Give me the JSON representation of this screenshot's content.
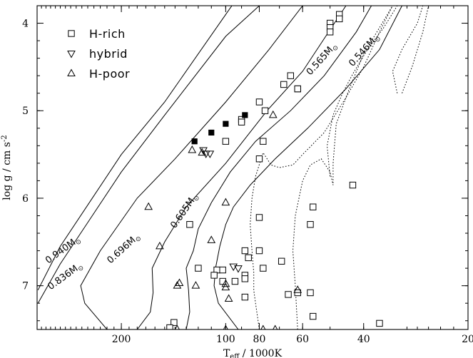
{
  "chart_data": {
    "type": "scatter",
    "xlabel": "T",
    "xlabel_sub": "eff",
    "xlabel_unit": "/ 1000K",
    "ylabel": "log g / cm s",
    "ylabel_sup": "-2",
    "x_scale": "log",
    "x_reversed": true,
    "y_reversed": true,
    "xlim": [
      350,
      20
    ],
    "ylim": [
      3.8,
      7.5
    ],
    "x_ticks": [
      200,
      100,
      80,
      60,
      40,
      20
    ],
    "y_ticks": [
      4,
      5,
      6,
      7
    ],
    "legend": {
      "placement": "top-left",
      "entries": [
        {
          "marker": "square",
          "label": "H-rich"
        },
        {
          "marker": "triangle-down",
          "label": "hybrid"
        },
        {
          "marker": "triangle-up",
          "label": "H-poor"
        }
      ]
    },
    "series": [
      {
        "name": "H-rich",
        "marker": "square",
        "points": [
          [
            50,
            4.0
          ],
          [
            50,
            4.05
          ],
          [
            50,
            4.1
          ],
          [
            47,
            3.9
          ],
          [
            47,
            3.95
          ],
          [
            65,
            4.6
          ],
          [
            68,
            4.7
          ],
          [
            62,
            4.75
          ],
          [
            62,
            4.75
          ],
          [
            80,
            4.9
          ],
          [
            77,
            5.0
          ],
          [
            90,
            5.1
          ],
          [
            90,
            5.13
          ],
          [
            100,
            5.35
          ],
          [
            78,
            5.35
          ],
          [
            80,
            5.55
          ],
          [
            43,
            5.85
          ],
          [
            56,
            6.1
          ],
          [
            80,
            6.22
          ],
          [
            57,
            6.3
          ],
          [
            127,
            6.3
          ],
          [
            88,
            6.6
          ],
          [
            80,
            6.6
          ],
          [
            86,
            6.68
          ],
          [
            69,
            6.72
          ],
          [
            120,
            6.8
          ],
          [
            106,
            6.82
          ],
          [
            102,
            6.82
          ],
          [
            108,
            6.88
          ],
          [
            78,
            6.8
          ],
          [
            88,
            6.88
          ],
          [
            88,
            6.92
          ],
          [
            102,
            6.95
          ],
          [
            94,
            6.95
          ],
          [
            62,
            7.08
          ],
          [
            66,
            7.1
          ],
          [
            57,
            7.08
          ],
          [
            88,
            7.13
          ],
          [
            56,
            7.35
          ],
          [
            36,
            7.43
          ],
          [
            141,
            7.42
          ],
          [
            145,
            7.48
          ]
        ]
      },
      {
        "name": "hybrid",
        "marker": "triangle-down",
        "points": [
          [
            116,
            5.45
          ],
          [
            114,
            5.49
          ],
          [
            111,
            5.49
          ],
          [
            92,
            6.8
          ],
          [
            95,
            6.78
          ]
        ]
      },
      {
        "name": "H-poor",
        "marker": "triangle-up",
        "points": [
          [
            125,
            5.45
          ],
          [
            117,
            5.48
          ],
          [
            73,
            5.05
          ],
          [
            167,
            6.1
          ],
          [
            155,
            6.55
          ],
          [
            110,
            6.48
          ],
          [
            100,
            6.05
          ],
          [
            138,
            7.0
          ],
          [
            136,
            6.97
          ],
          [
            122,
            7.0
          ],
          [
            100,
            6.98
          ],
          [
            100,
            7.02
          ],
          [
            98,
            7.15
          ],
          [
            62,
            7.05
          ],
          [
            138,
            7.5
          ],
          [
            100,
            7.5
          ],
          [
            78,
            7.5
          ],
          [
            72,
            7.5
          ]
        ]
      },
      {
        "name": "H-rich (filled)",
        "marker": "square-filled",
        "points": [
          [
            123,
            5.35
          ],
          [
            110,
            5.25
          ],
          [
            100,
            5.15
          ],
          [
            88,
            5.05
          ]
        ]
      }
    ],
    "tracks": [
      {
        "label": "0.940M",
        "label_at": [
          325,
          6.75
        ],
        "points": [
          [
            348,
            7.05
          ],
          [
            300,
            6.55
          ],
          [
            200,
            5.5
          ],
          [
            150,
            4.9
          ],
          [
            100,
            3.9
          ],
          [
            96,
            3.8
          ]
        ]
      },
      {
        "label": "0.836M",
        "label_at": [
          320,
          7.05
        ],
        "points": [
          [
            348,
            7.2
          ],
          [
            300,
            6.75
          ],
          [
            200,
            5.7
          ],
          [
            150,
            5.05
          ],
          [
            100,
            4.15
          ],
          [
            80,
            3.8
          ]
        ]
      },
      {
        "label": "0.696M",
        "label_at": [
          215,
          6.75
        ],
        "points": [
          [
            220,
            7.5
          ],
          [
            255,
            7.2
          ],
          [
            262,
            7.0
          ],
          [
            230,
            6.6
          ],
          [
            180,
            6.0
          ],
          [
            140,
            5.55
          ],
          [
            100,
            4.9
          ],
          [
            75,
            4.3
          ],
          [
            60,
            3.8
          ]
        ]
      },
      {
        "label": "0.605M",
        "label_at": [
          140,
          6.35
        ],
        "points": [
          [
            180,
            7.5
          ],
          [
            165,
            7.3
          ],
          [
            162,
            7.08
          ],
          [
            163,
            6.8
          ],
          [
            150,
            6.5
          ],
          [
            130,
            6.1
          ],
          [
            100,
            5.6
          ],
          [
            76,
            5.0
          ],
          [
            60,
            4.55
          ],
          [
            45,
            3.8
          ]
        ]
      },
      {
        "label": "0.565M",
        "label_at": [
          57,
          4.6
        ],
        "points": [
          [
            130,
            7.5
          ],
          [
            127,
            7.3
          ],
          [
            128,
            7.05
          ],
          [
            130,
            6.8
          ],
          [
            124,
            6.6
          ],
          [
            120,
            6.35
          ],
          [
            110,
            6.05
          ],
          [
            97,
            5.7
          ],
          [
            82,
            5.35
          ],
          [
            65,
            5.0
          ],
          [
            52,
            4.6
          ],
          [
            42,
            4.1
          ],
          [
            38,
            3.8
          ]
        ]
      },
      {
        "label": "0.546M",
        "label_at": [
          43,
          4.5
        ],
        "points": [
          [
            92,
            7.5
          ],
          [
            105,
            7.2
          ],
          [
            108,
            7.0
          ],
          [
            107,
            6.8
          ],
          [
            104,
            6.55
          ],
          [
            100,
            6.3
          ],
          [
            95,
            6.1
          ],
          [
            85,
            5.85
          ],
          [
            72,
            5.55
          ],
          [
            58,
            5.2
          ],
          [
            45,
            4.75
          ],
          [
            36,
            4.3
          ],
          [
            31,
            3.8
          ]
        ]
      }
    ],
    "dotted_tracks": [
      {
        "points": [
          [
            80,
            7.5
          ],
          [
            82,
            7.2
          ],
          [
            83,
            7.05
          ],
          [
            83,
            6.85
          ],
          [
            84,
            6.6
          ],
          [
            85,
            6.3
          ],
          [
            84,
            6.0
          ],
          [
            82,
            5.75
          ],
          [
            78,
            5.48
          ],
          [
            74,
            5.62
          ],
          [
            70,
            5.65
          ],
          [
            64,
            5.62
          ],
          [
            60,
            5.5
          ],
          [
            52,
            5.25
          ],
          [
            45,
            4.85
          ],
          [
            40,
            4.5
          ],
          [
            36,
            4.1
          ],
          [
            33,
            3.8
          ]
        ]
      },
      {
        "points": [
          [
            62,
            7.5
          ],
          [
            63,
            7.0
          ],
          [
            64,
            6.6
          ],
          [
            63,
            6.2
          ],
          [
            60,
            5.8
          ],
          [
            57,
            5.62
          ],
          [
            53,
            5.55
          ],
          [
            50,
            5.7
          ],
          [
            49,
            5.85
          ],
          [
            49,
            5.6
          ],
          [
            48,
            5.15
          ],
          [
            44,
            4.75
          ],
          [
            40,
            4.35
          ],
          [
            36,
            4.05
          ],
          [
            33,
            3.8
          ]
        ]
      },
      {
        "points": [
          [
            50,
            5.75
          ],
          [
            51,
            5.4
          ],
          [
            49,
            5.05
          ],
          [
            46,
            4.8
          ],
          [
            43,
            4.58
          ],
          [
            39,
            4.3
          ],
          [
            35,
            4.05
          ],
          [
            32,
            3.8
          ]
        ]
      },
      {
        "points": [
          [
            32,
            4.8
          ],
          [
            33,
            4.55
          ],
          [
            31,
            4.3
          ],
          [
            28,
            4.0
          ],
          [
            27,
            3.8
          ]
        ]
      },
      {
        "points": [
          [
            31,
            4.8
          ],
          [
            29,
            4.5
          ],
          [
            27,
            4.1
          ],
          [
            26,
            3.8
          ]
        ]
      }
    ]
  }
}
